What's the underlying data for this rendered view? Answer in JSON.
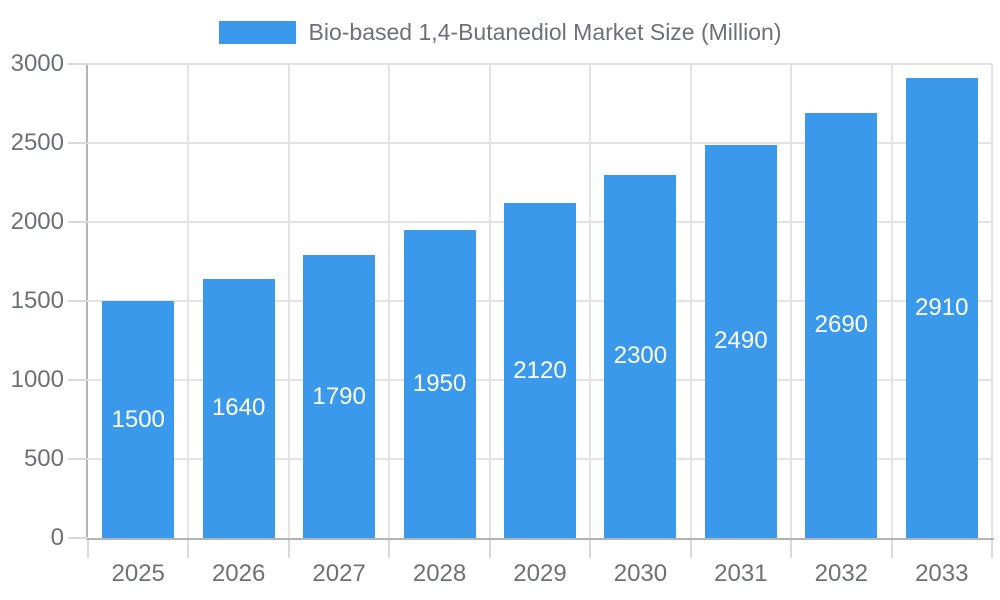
{
  "legend": {
    "label": "Bio-based 1,4-Butanediol Market Size (Million)"
  },
  "chart_data": {
    "type": "bar",
    "title": "Bio-based 1,4-Butanediol Market Size (Million)",
    "series_name": "Bio-based 1,4-Butanediol Market Size (Million)",
    "categories": [
      "2025",
      "2026",
      "2027",
      "2028",
      "2029",
      "2030",
      "2031",
      "2032",
      "2033"
    ],
    "values": [
      1500,
      1640,
      1790,
      1950,
      2120,
      2300,
      2490,
      2690,
      2910
    ],
    "value_labels": [
      "1500",
      "1640",
      "1790",
      "1950",
      "2120",
      "2300",
      "2490",
      "2690",
      "2910"
    ],
    "xlabel": "",
    "ylabel": "",
    "ylim": [
      0,
      3000
    ],
    "yticks": [
      0,
      500,
      1000,
      1500,
      2000,
      2500,
      3000
    ],
    "grid": true,
    "legend_position": "top-center",
    "colors": {
      "bar": "#3B99EC",
      "bar_value_text": "#FFFFFF",
      "axis_text": "#6E7079",
      "legend_text": "#6E7079",
      "grid_line": "#E3E3E3",
      "axis_line": "#B3B3B3",
      "tick_mark": "#D9D9D9",
      "background": "#FFFFFF"
    }
  }
}
